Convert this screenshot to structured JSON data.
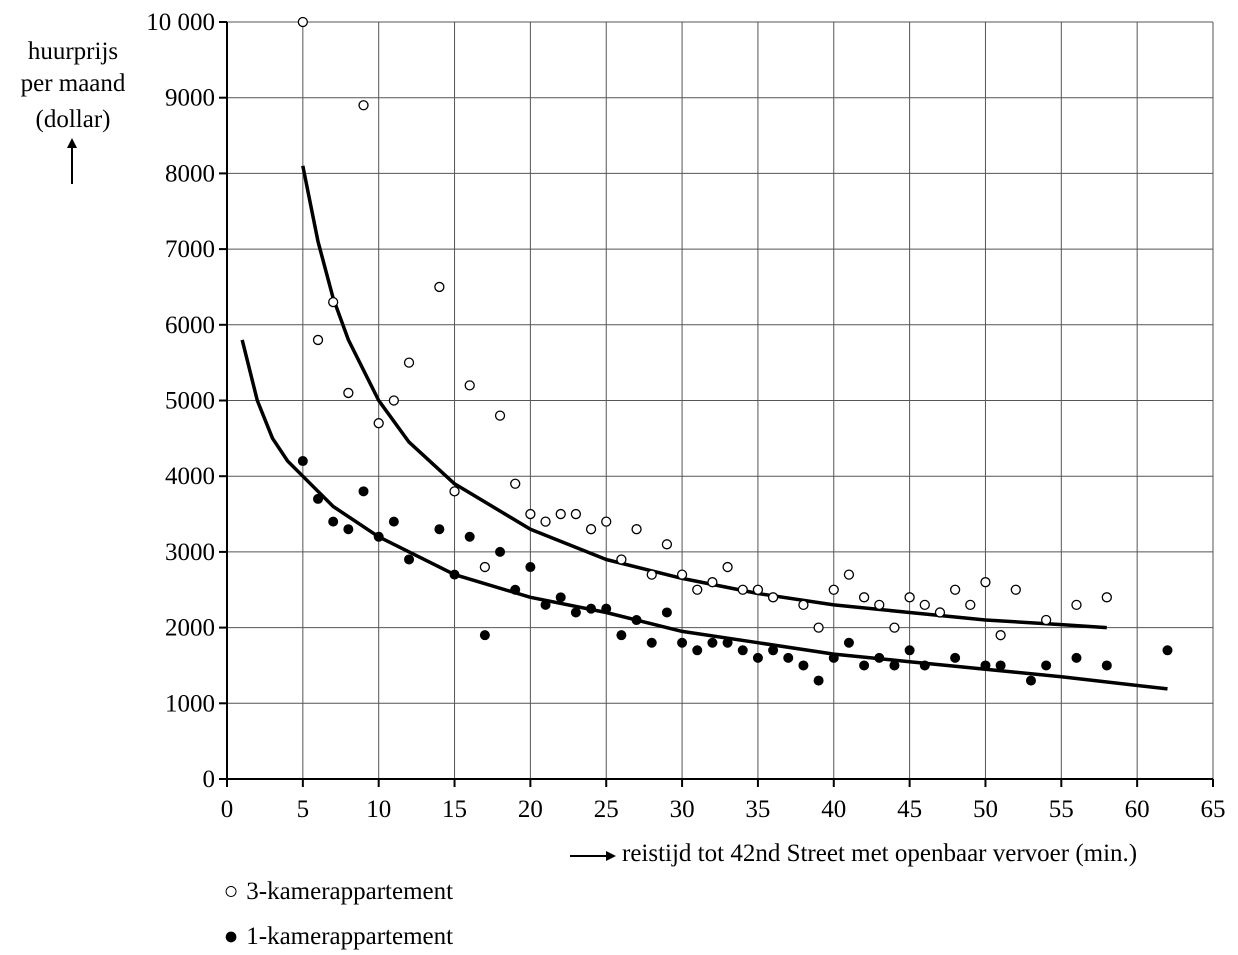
{
  "chart_data": {
    "type": "scatter",
    "ylabel_lines": [
      "huurprijs",
      "per maand",
      "(dollar)"
    ],
    "xlabel": "reistijd tot 42nd Street met openbaar vervoer (min.)",
    "xlim": [
      0,
      65
    ],
    "ylim": [
      0,
      10000
    ],
    "x_ticks": [
      0,
      5,
      10,
      15,
      20,
      25,
      30,
      35,
      40,
      45,
      50,
      55,
      60,
      65
    ],
    "y_ticks": [
      0,
      1000,
      2000,
      3000,
      4000,
      5000,
      6000,
      7000,
      8000,
      9000,
      10000
    ],
    "y_tick_labels": [
      "0",
      "1000",
      "2000",
      "3000",
      "4000",
      "5000",
      "6000",
      "7000",
      "8000",
      "9000",
      "10 000"
    ],
    "grid": true,
    "legend_position": "bottom-left",
    "series": [
      {
        "name": "3-kamerappartement",
        "marker": "open-circle",
        "points": [
          [
            5,
            10000
          ],
          [
            6,
            5800
          ],
          [
            7,
            6300
          ],
          [
            8,
            5100
          ],
          [
            9,
            8900
          ],
          [
            10,
            4700
          ],
          [
            11,
            5000
          ],
          [
            12,
            5500
          ],
          [
            14,
            6500
          ],
          [
            15,
            3800
          ],
          [
            16,
            5200
          ],
          [
            17,
            2800
          ],
          [
            18,
            4800
          ],
          [
            19,
            3900
          ],
          [
            20,
            3500
          ],
          [
            21,
            3400
          ],
          [
            22,
            3500
          ],
          [
            23,
            3500
          ],
          [
            24,
            3300
          ],
          [
            25,
            3400
          ],
          [
            26,
            2900
          ],
          [
            27,
            3300
          ],
          [
            28,
            2700
          ],
          [
            29,
            3100
          ],
          [
            30,
            2700
          ],
          [
            31,
            2500
          ],
          [
            32,
            2600
          ],
          [
            33,
            2800
          ],
          [
            34,
            2500
          ],
          [
            35,
            2500
          ],
          [
            36,
            2400
          ],
          [
            38,
            2300
          ],
          [
            39,
            2000
          ],
          [
            40,
            2500
          ],
          [
            41,
            2700
          ],
          [
            42,
            2400
          ],
          [
            43,
            2300
          ],
          [
            44,
            2000
          ],
          [
            45,
            2400
          ],
          [
            46,
            2300
          ],
          [
            47,
            2200
          ],
          [
            48,
            2500
          ],
          [
            49,
            2300
          ],
          [
            50,
            2600
          ],
          [
            51,
            1900
          ],
          [
            52,
            2500
          ],
          [
            54,
            2100
          ],
          [
            56,
            2300
          ],
          [
            58,
            2400
          ]
        ],
        "trend_curve": [
          [
            5,
            8100
          ],
          [
            6,
            7100
          ],
          [
            7,
            6350
          ],
          [
            8,
            5800
          ],
          [
            10,
            5000
          ],
          [
            12,
            4450
          ],
          [
            15,
            3900
          ],
          [
            20,
            3300
          ],
          [
            25,
            2900
          ],
          [
            30,
            2650
          ],
          [
            35,
            2450
          ],
          [
            40,
            2300
          ],
          [
            45,
            2200
          ],
          [
            50,
            2100
          ],
          [
            55,
            2040
          ],
          [
            58,
            2000
          ]
        ]
      },
      {
        "name": "1-kamerappartement",
        "marker": "filled-circle",
        "points": [
          [
            5,
            4200
          ],
          [
            6,
            3700
          ],
          [
            7,
            3400
          ],
          [
            8,
            3300
          ],
          [
            9,
            3800
          ],
          [
            10,
            3200
          ],
          [
            11,
            3400
          ],
          [
            12,
            2900
          ],
          [
            14,
            3300
          ],
          [
            15,
            2700
          ],
          [
            16,
            3200
          ],
          [
            17,
            1900
          ],
          [
            18,
            3000
          ],
          [
            19,
            2500
          ],
          [
            20,
            2800
          ],
          [
            21,
            2300
          ],
          [
            22,
            2400
          ],
          [
            23,
            2200
          ],
          [
            24,
            2250
          ],
          [
            25,
            2250
          ],
          [
            26,
            1900
          ],
          [
            27,
            2100
          ],
          [
            28,
            1800
          ],
          [
            29,
            2200
          ],
          [
            30,
            1800
          ],
          [
            31,
            1700
          ],
          [
            32,
            1800
          ],
          [
            33,
            1800
          ],
          [
            34,
            1700
          ],
          [
            35,
            1600
          ],
          [
            36,
            1700
          ],
          [
            37,
            1600
          ],
          [
            38,
            1500
          ],
          [
            39,
            1300
          ],
          [
            40,
            1600
          ],
          [
            41,
            1800
          ],
          [
            42,
            1500
          ],
          [
            43,
            1600
          ],
          [
            44,
            1500
          ],
          [
            45,
            1700
          ],
          [
            46,
            1500
          ],
          [
            48,
            1600
          ],
          [
            50,
            1500
          ],
          [
            51,
            1500
          ],
          [
            53,
            1300
          ],
          [
            54,
            1500
          ],
          [
            56,
            1600
          ],
          [
            58,
            1500
          ],
          [
            62,
            1700
          ]
        ],
        "trend_curve": [
          [
            1,
            5800
          ],
          [
            2,
            5000
          ],
          [
            3,
            4500
          ],
          [
            4,
            4200
          ],
          [
            5,
            4000
          ],
          [
            7,
            3600
          ],
          [
            10,
            3200
          ],
          [
            15,
            2700
          ],
          [
            20,
            2400
          ],
          [
            25,
            2200
          ],
          [
            30,
            1950
          ],
          [
            35,
            1800
          ],
          [
            40,
            1650
          ],
          [
            45,
            1550
          ],
          [
            50,
            1450
          ],
          [
            55,
            1350
          ],
          [
            62,
            1190
          ]
        ]
      }
    ]
  },
  "legend": [
    {
      "symbol": "○",
      "label": "3-kamerappartement"
    },
    {
      "symbol": "●",
      "label": "1-kamerappartement"
    }
  ],
  "y_arrow": "↑"
}
